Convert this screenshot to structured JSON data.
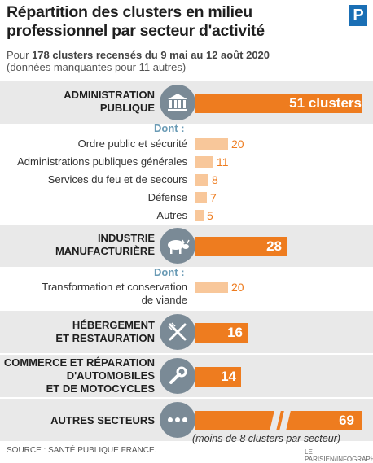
{
  "header": {
    "title_line1": "Répartition des clusters en milieu",
    "title_line2": "professionnel par secteur d'activité",
    "subtitle_prefix": "Pour ",
    "subtitle_bold": "178 clusters recensés du 9 mai au 12 août 2020",
    "subtitle_line2": "(données manquantes pour 11 autres)",
    "logo_letter": "P"
  },
  "labels": {
    "dont": "Dont :",
    "note": "(moins de 8 clusters par secteur)",
    "source": "SOURCE : SANTÉ PUBLIQUE FRANCE.",
    "credit": "LE PARISIEN/INFOGRAPHIE."
  },
  "colors": {
    "main_bar": "#ee7c1f",
    "sub_bar": "#f8c79a",
    "band": "#e9e9e9",
    "icon_circle": "#7a8a96",
    "dont_text": "#6a9bb5"
  },
  "chart_data": {
    "type": "bar",
    "orientation": "horizontal",
    "title": "Répartition des clusters en milieu professionnel par secteur d'activité",
    "sectors": [
      {
        "label_line1": "ADMINISTRATION",
        "label_line2": "PUBLIQUE",
        "label_line3": "",
        "icon": "government-building-icon",
        "value": 51,
        "value_label": "51 clusters",
        "sub": [
          {
            "label": "Ordre public et sécurité",
            "value": 20
          },
          {
            "label": "Administrations publiques générales",
            "value": 11
          },
          {
            "label": "Services du feu et de secours",
            "value": 8
          },
          {
            "label": "Défense",
            "value": 7
          },
          {
            "label": "Autres",
            "value": 5
          }
        ]
      },
      {
        "label_line1": "INDUSTRIE",
        "label_line2": "MANUFACTURIÈRE",
        "label_line3": "",
        "icon": "cow-icon",
        "value": 28,
        "value_label": "28",
        "sub": [
          {
            "label_line1": "Transformation et conservation",
            "label_line2": "de viande",
            "value": 20
          }
        ]
      },
      {
        "label_line1": "HÉBERGEMENT",
        "label_line2": "ET RESTAURATION",
        "label_line3": "",
        "icon": "fork-knife-icon",
        "value": 16,
        "value_label": "16",
        "sub": []
      },
      {
        "label_line1": "COMMERCE ET RÉPARATION",
        "label_line2": "D'AUTOMOBILES",
        "label_line3": "ET DE MOTOCYCLES",
        "icon": "wrench-icon",
        "value": 14,
        "value_label": "14",
        "sub": []
      },
      {
        "label_line1": "AUTRES SECTEURS",
        "label_line2": "",
        "label_line3": "",
        "icon": "ellipsis-icon",
        "value": 69,
        "value_label": "69",
        "broken_axis": true,
        "sub": []
      }
    ]
  }
}
